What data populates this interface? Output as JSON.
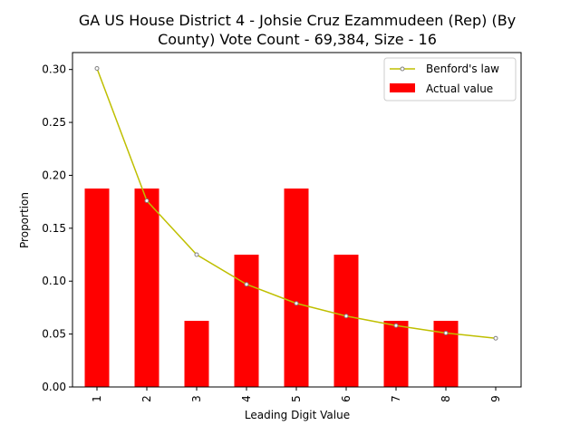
{
  "chart_data": {
    "type": "bar",
    "title_lines": [
      "GA US House District 4 - Johsie Cruz Ezammudeen (Rep) (By",
      "County) Vote Count - 69,384, Size - 16"
    ],
    "xlabel": "Leading Digit Value",
    "ylabel": "Proportion",
    "categories": [
      "1",
      "2",
      "3",
      "4",
      "5",
      "6",
      "7",
      "8",
      "9"
    ],
    "series": [
      {
        "name": "Actual value",
        "kind": "bar",
        "color": "#ff0000",
        "values": [
          0.1875,
          0.1875,
          0.0625,
          0.125,
          0.1875,
          0.125,
          0.0625,
          0.0625,
          0.0
        ]
      },
      {
        "name": "Benford's law",
        "kind": "line",
        "color": "#bfbf00",
        "marker_color": "#808080",
        "values": [
          0.301,
          0.176,
          0.125,
          0.097,
          0.079,
          0.067,
          0.058,
          0.051,
          0.046
        ]
      }
    ],
    "ylim": [
      0,
      0.316
    ],
    "yticks": [
      "0.00",
      "0.05",
      "0.10",
      "0.15",
      "0.20",
      "0.25",
      "0.30"
    ],
    "legend_position": "top-right",
    "grid": false
  }
}
